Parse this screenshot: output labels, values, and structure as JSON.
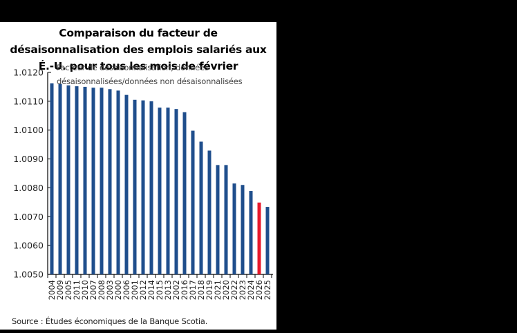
{
  "chart_data": {
    "type": "bar",
    "title": "Comparaison du facteur de désaisonnalisation des emplois salariés aux É.-U. pour tous les mois de février",
    "title_lines": [
      "Comparaison du facteur de",
      "désaisonnalisation des emplois salariés aux",
      "É.-U. pour tous les mois de février"
    ],
    "subtitle_lines": [
      "Facteur de désaisonnalisation, données",
      "désaisonnalisées/données non désaisonnalisées"
    ],
    "xlabel": "",
    "ylabel": "Facteur de désaisonnalisation, données désaisonnalisées/données non désaisonnalisées",
    "ylim": [
      1.005,
      1.012
    ],
    "yticks": [
      "1.0050",
      "1.0060",
      "1.0070",
      "1.0080",
      "1.0090",
      "1.0100",
      "1.0110",
      "1.0120"
    ],
    "grid": false,
    "legend": null,
    "categories": [
      "2004",
      "2009",
      "2005",
      "2011",
      "2010",
      "2007",
      "2008",
      "2003",
      "2000",
      "2006",
      "2001",
      "2012",
      "2014",
      "2015",
      "2013",
      "2002",
      "2016",
      "2017",
      "2018",
      "2019",
      "2021",
      "2020",
      "2022",
      "2023",
      "2024",
      "2026",
      "2025"
    ],
    "values": [
      1.01162,
      1.0116,
      1.01155,
      1.01152,
      1.0115,
      1.01147,
      1.01147,
      1.01142,
      1.01137,
      1.01122,
      1.01105,
      1.01103,
      1.011,
      1.01078,
      1.01078,
      1.01073,
      1.01062,
      1.00998,
      1.0096,
      1.00929,
      1.00879,
      1.00879,
      1.00815,
      1.0081,
      1.00789,
      1.00749,
      1.00734
    ],
    "highlight": {
      "category": "2026",
      "color": "#e8192c"
    },
    "bar_color": "#1f4e8c",
    "source": "Source : Études économiques de la Banque Scotia."
  }
}
